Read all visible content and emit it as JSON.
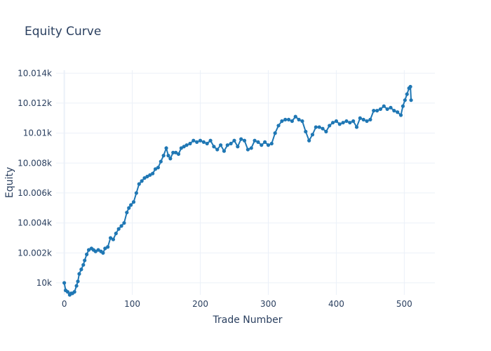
{
  "chart_data": {
    "type": "line",
    "mode": "lines+markers",
    "title": "Equity Curve",
    "xlabel": "Trade Number",
    "ylabel": "Equity",
    "xlim": [
      -12,
      545
    ],
    "ylim": [
      9999.2,
      10014.2
    ],
    "xticks": [
      0,
      100,
      200,
      300,
      400,
      500
    ],
    "xtick_labels": [
      "0",
      "100",
      "200",
      "300",
      "400",
      "500"
    ],
    "yticks": [
      10000,
      10002,
      10004,
      10006,
      10008,
      10010,
      10012,
      10014
    ],
    "ytick_labels": [
      "10k",
      "10.002k",
      "10.004k",
      "10.006k",
      "10.008k",
      "10.01k",
      "10.012k",
      "10.014k"
    ],
    "grid": true,
    "series_color": "#1f77b4",
    "x": [
      0,
      2,
      5,
      8,
      10,
      12,
      15,
      18,
      20,
      22,
      25,
      28,
      30,
      33,
      36,
      40,
      43,
      46,
      50,
      54,
      57,
      60,
      64,
      68,
      72,
      76,
      80,
      84,
      88,
      92,
      95,
      98,
      102,
      106,
      110,
      114,
      118,
      122,
      126,
      130,
      134,
      138,
      142,
      146,
      150,
      153,
      156,
      160,
      164,
      168,
      172,
      176,
      180,
      185,
      190,
      195,
      200,
      205,
      210,
      215,
      220,
      225,
      230,
      235,
      240,
      245,
      250,
      255,
      260,
      265,
      270,
      275,
      280,
      285,
      290,
      295,
      300,
      305,
      310,
      315,
      320,
      325,
      330,
      335,
      340,
      345,
      350,
      355,
      360,
      365,
      370,
      375,
      380,
      385,
      390,
      395,
      400,
      405,
      410,
      415,
      420,
      425,
      430,
      435,
      440,
      445,
      450,
      455,
      460,
      465,
      470,
      475,
      480,
      485,
      490,
      495,
      498,
      501,
      504,
      507,
      509,
      510
    ],
    "y": [
      10000.0,
      9999.5,
      9999.4,
      9999.2,
      9999.3,
      9999.3,
      9999.4,
      9999.8,
      10000.1,
      10000.6,
      10000.9,
      10001.2,
      10001.5,
      10001.9,
      10002.2,
      10002.3,
      10002.2,
      10002.1,
      10002.2,
      10002.1,
      10002.0,
      10002.3,
      10002.4,
      10003.0,
      10002.9,
      10003.3,
      10003.6,
      10003.8,
      10004.0,
      10004.7,
      10005.0,
      10005.2,
      10005.4,
      10006.0,
      10006.6,
      10006.8,
      10007.0,
      10007.1,
      10007.2,
      10007.3,
      10007.6,
      10007.7,
      10008.1,
      10008.5,
      10009.0,
      10008.5,
      10008.3,
      10008.7,
      10008.7,
      10008.6,
      10009.0,
      10009.1,
      10009.2,
      10009.3,
      10009.5,
      10009.4,
      10009.5,
      10009.4,
      10009.3,
      10009.5,
      10009.1,
      10008.9,
      10009.2,
      10008.8,
      10009.2,
      10009.3,
      10009.5,
      10009.1,
      10009.6,
      10009.5,
      10008.9,
      10009.0,
      10009.5,
      10009.4,
      10009.2,
      10009.4,
      10009.2,
      10009.3,
      10010.0,
      10010.5,
      10010.8,
      10010.9,
      10010.9,
      10010.8,
      10011.1,
      10010.9,
      10010.8,
      10010.1,
      10009.5,
      10009.9,
      10010.4,
      10010.4,
      10010.3,
      10010.1,
      10010.5,
      10010.7,
      10010.8,
      10010.6,
      10010.7,
      10010.8,
      10010.7,
      10010.8,
      10010.4,
      10011.0,
      10010.9,
      10010.8,
      10010.9,
      10011.5,
      10011.5,
      10011.6,
      10011.8,
      10011.6,
      10011.7,
      10011.5,
      10011.4,
      10011.2,
      10011.8,
      10012.2,
      10012.6,
      10013.0,
      10013.1,
      10012.2
    ]
  }
}
